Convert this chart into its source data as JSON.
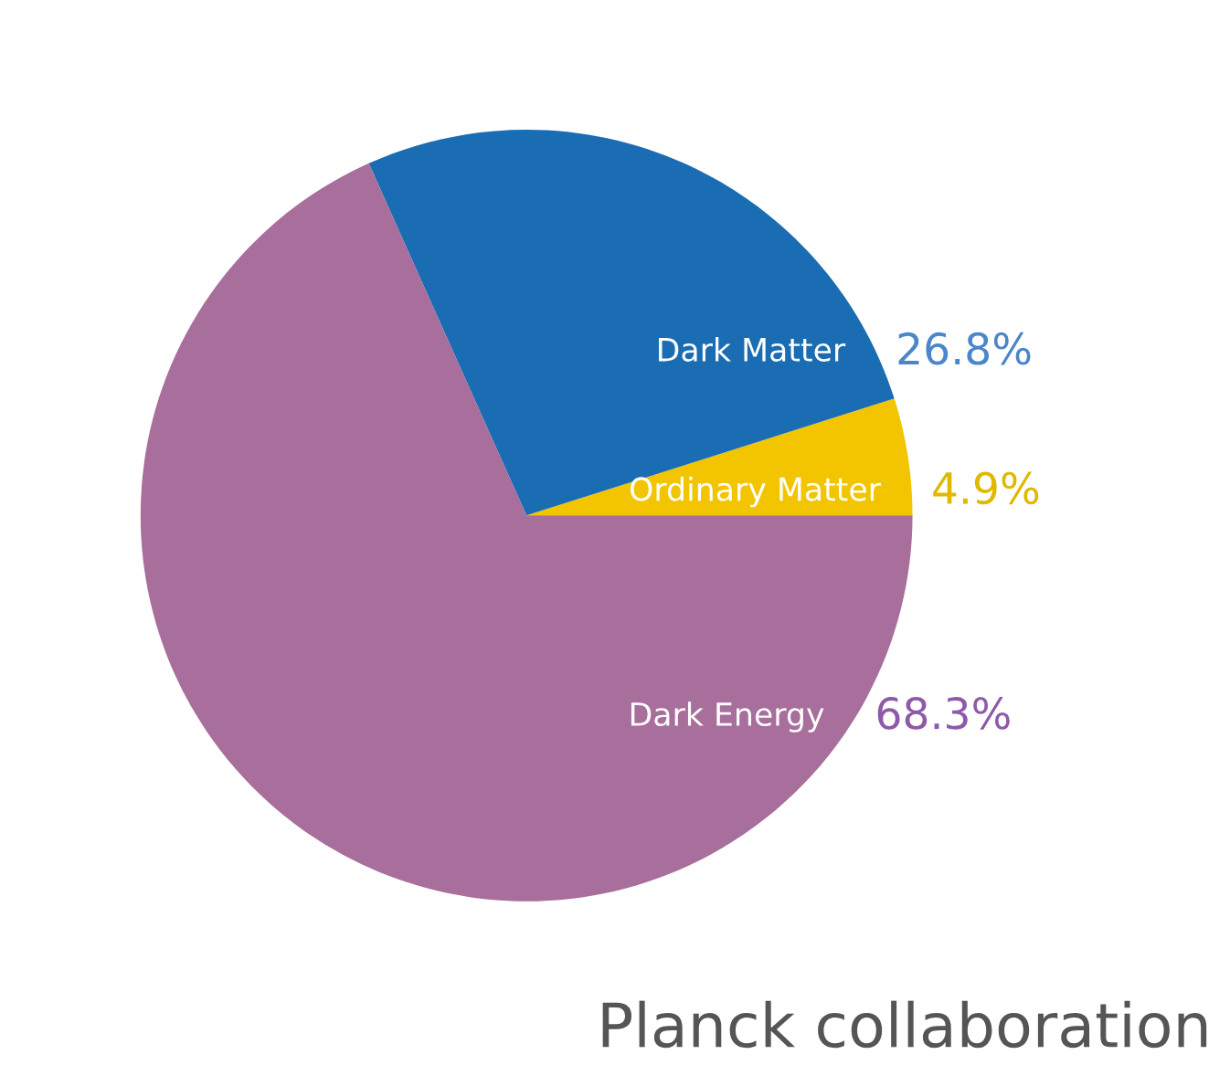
{
  "chart_data": {
    "type": "pie",
    "categories": [
      "Ordinary Matter",
      "Dark Matter",
      "Dark Energy"
    ],
    "values": [
      4.9,
      26.8,
      68.3
    ],
    "colors": [
      "#f2c500",
      "#1a6db3",
      "#a86e9c"
    ],
    "value_labels": [
      "4.9%",
      "26.8%",
      "68.3%"
    ],
    "annotations": [
      "Planck collaboration"
    ]
  }
}
